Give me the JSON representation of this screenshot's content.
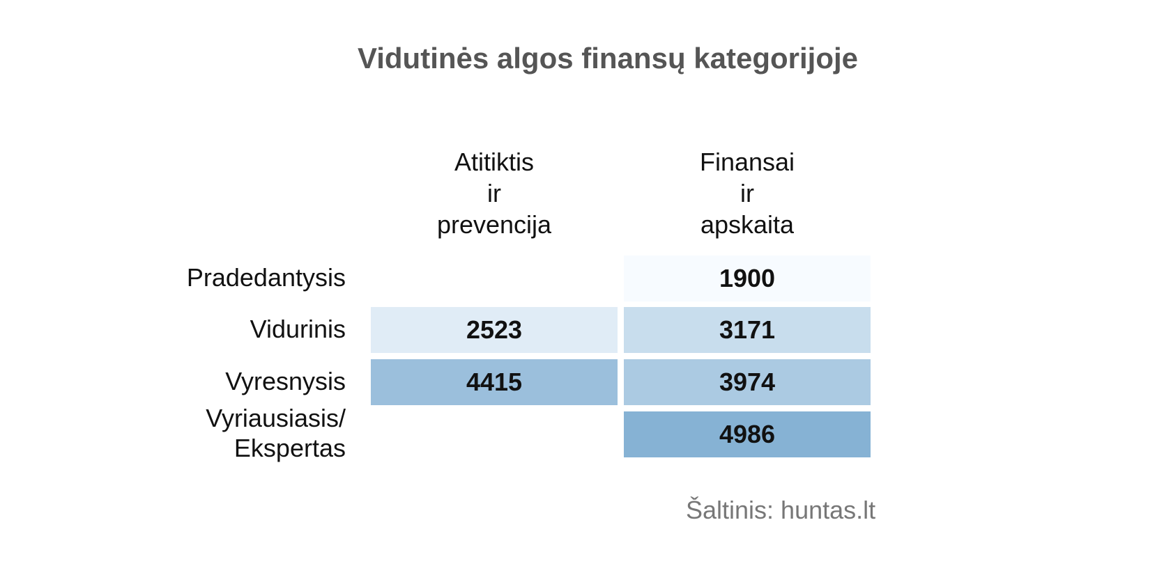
{
  "chart_data": {
    "type": "heatmap",
    "title": "Vidutinės algos finansų kategorijoje",
    "columns": [
      "Atitiktis\nir\nprevencija",
      "Finansai\nir\napskaita"
    ],
    "rows": [
      "Pradedantysis",
      "Vidurinis",
      "Vyresnysis",
      "Vyriausiasis/\nEkspertas"
    ],
    "values": [
      [
        null,
        1900
      ],
      [
        2523,
        3171
      ],
      [
        4415,
        3974
      ],
      [
        null,
        4986
      ]
    ],
    "color_scale": {
      "min_color": "#f7fbff",
      "max_color": "#6fa3cc",
      "min": 1900,
      "max": 5600
    },
    "source": "Šaltinis: huntas.lt"
  }
}
